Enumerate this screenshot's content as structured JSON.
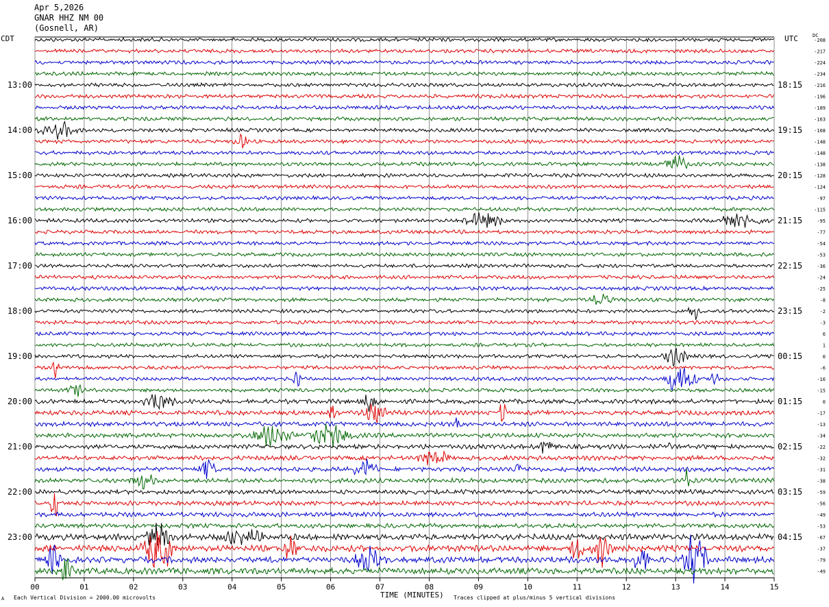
{
  "header": {
    "date": "Apr 5,2026",
    "station": "GNAR HHZ NM 00",
    "location": "(Gosnell, AR)"
  },
  "left_tz": "CDT",
  "right_tz": "UTC",
  "dc_label": "DC",
  "footer": {
    "scale_note": "Each Vertical Division = 2000.00 microvolts",
    "xlabel": "TIME (MINUTES)",
    "clip_note": "Traces clipped at plus/minus 5 vertical divisions",
    "corner_mark": "A"
  },
  "colors": [
    "#000000",
    "#dd0000",
    "#0000cc",
    "#006600"
  ],
  "chart_data": {
    "type": "line",
    "title": "",
    "xlabel": "TIME (MINUTES)",
    "xlim": [
      0,
      15
    ],
    "x_ticks": [
      "00",
      "01",
      "02",
      "03",
      "04",
      "05",
      "06",
      "07",
      "08",
      "09",
      "10",
      "11",
      "12",
      "13",
      "14",
      "15"
    ],
    "minutes_per_line": 15,
    "left_hour_labels": [
      "13:00",
      "14:00",
      "15:00",
      "16:00",
      "17:00",
      "18:00",
      "19:00",
      "20:00",
      "21:00",
      "22:00",
      "23:00"
    ],
    "right_hour_labels": [
      "18:15",
      "19:15",
      "20:15",
      "21:15",
      "22:15",
      "23:15",
      "00:15",
      "01:15",
      "02:15",
      "03:15",
      "04:15"
    ],
    "dc_offsets": [
      -208,
      -217,
      -224,
      -234,
      -216,
      -196,
      -189,
      -163,
      -168,
      -148,
      -148,
      -138,
      -128,
      -124,
      -97,
      -115,
      -95,
      -77,
      -54,
      -53,
      -36,
      -24,
      -25,
      -8,
      -2,
      -3,
      6,
      1,
      0,
      -6,
      -16,
      -15,
      0,
      -17,
      -13,
      -34,
      -22,
      -32,
      -31,
      -38,
      -59,
      -56,
      -49,
      -53,
      -67,
      -37,
      -79,
      -49
    ],
    "trace_color_cycle": [
      "black",
      "red",
      "blue",
      "green"
    ],
    "events": [
      {
        "line": 8,
        "minute": 0.5,
        "amp": 1.3,
        "dur": 0.5
      },
      {
        "line": 9,
        "minute": 4.2,
        "amp": 1.0,
        "dur": 0.2
      },
      {
        "line": 11,
        "minute": 13.0,
        "amp": 1.5,
        "dur": 0.3
      },
      {
        "line": 16,
        "minute": 9.1,
        "amp": 1.2,
        "dur": 0.6
      },
      {
        "line": 16,
        "minute": 14.3,
        "amp": 1.0,
        "dur": 0.6
      },
      {
        "line": 23,
        "minute": 11.5,
        "amp": 1.0,
        "dur": 0.3
      },
      {
        "line": 24,
        "minute": 13.4,
        "amp": 1.2,
        "dur": 0.2
      },
      {
        "line": 28,
        "minute": 13.0,
        "amp": 1.6,
        "dur": 0.3
      },
      {
        "line": 29,
        "minute": 0.4,
        "amp": 2.2,
        "dur": 0.1
      },
      {
        "line": 30,
        "minute": 5.3,
        "amp": 2.0,
        "dur": 0.1
      },
      {
        "line": 30,
        "minute": 13.1,
        "amp": 3.0,
        "dur": 0.4
      },
      {
        "line": 30,
        "minute": 13.8,
        "amp": 2.0,
        "dur": 0.1
      },
      {
        "line": 31,
        "minute": 0.8,
        "amp": 1.2,
        "dur": 0.2
      },
      {
        "line": 32,
        "minute": 2.5,
        "amp": 1.3,
        "dur": 0.4
      },
      {
        "line": 32,
        "minute": 6.8,
        "amp": 1.6,
        "dur": 0.2
      },
      {
        "line": 33,
        "minute": 6.0,
        "amp": 2.5,
        "dur": 0.1
      },
      {
        "line": 33,
        "minute": 6.9,
        "amp": 2.0,
        "dur": 0.3
      },
      {
        "line": 33,
        "minute": 9.5,
        "amp": 2.5,
        "dur": 0.1
      },
      {
        "line": 34,
        "minute": 8.6,
        "amp": 1.5,
        "dur": 0.1
      },
      {
        "line": 35,
        "minute": 4.8,
        "amp": 2.0,
        "dur": 0.5
      },
      {
        "line": 35,
        "minute": 6.0,
        "amp": 1.8,
        "dur": 0.6
      },
      {
        "line": 36,
        "minute": 10.4,
        "amp": 1.6,
        "dur": 0.2
      },
      {
        "line": 36,
        "minute": 12.9,
        "amp": 1.0,
        "dur": 0.1
      },
      {
        "line": 37,
        "minute": 8.1,
        "amp": 1.3,
        "dur": 0.4
      },
      {
        "line": 38,
        "minute": 3.5,
        "amp": 2.2,
        "dur": 0.2
      },
      {
        "line": 38,
        "minute": 6.7,
        "amp": 1.6,
        "dur": 0.3
      },
      {
        "line": 38,
        "minute": 9.8,
        "amp": 1.6,
        "dur": 0.1
      },
      {
        "line": 39,
        "minute": 2.2,
        "amp": 1.2,
        "dur": 0.3
      },
      {
        "line": 39,
        "minute": 13.2,
        "amp": 2.0,
        "dur": 0.1
      },
      {
        "line": 41,
        "minute": 0.4,
        "amp": 3.0,
        "dur": 0.1
      },
      {
        "line": 44,
        "minute": 2.5,
        "amp": 2.4,
        "dur": 0.3
      },
      {
        "line": 44,
        "minute": 4.2,
        "amp": 1.5,
        "dur": 0.5
      },
      {
        "line": 45,
        "minute": 2.5,
        "amp": 4.5,
        "dur": 0.4
      },
      {
        "line": 45,
        "minute": 5.2,
        "amp": 2.5,
        "dur": 0.2
      },
      {
        "line": 45,
        "minute": 11.5,
        "amp": 3.5,
        "dur": 0.3
      },
      {
        "line": 45,
        "minute": 11.0,
        "amp": 2.5,
        "dur": 0.2
      },
      {
        "line": 46,
        "minute": 0.4,
        "amp": 2.5,
        "dur": 0.2
      },
      {
        "line": 46,
        "minute": 6.8,
        "amp": 1.8,
        "dur": 0.4
      },
      {
        "line": 46,
        "minute": 12.3,
        "amp": 2.5,
        "dur": 0.2
      },
      {
        "line": 46,
        "minute": 13.4,
        "amp": 5.0,
        "dur": 0.3
      },
      {
        "line": 47,
        "minute": 0.6,
        "amp": 2.5,
        "dur": 0.2
      }
    ]
  }
}
